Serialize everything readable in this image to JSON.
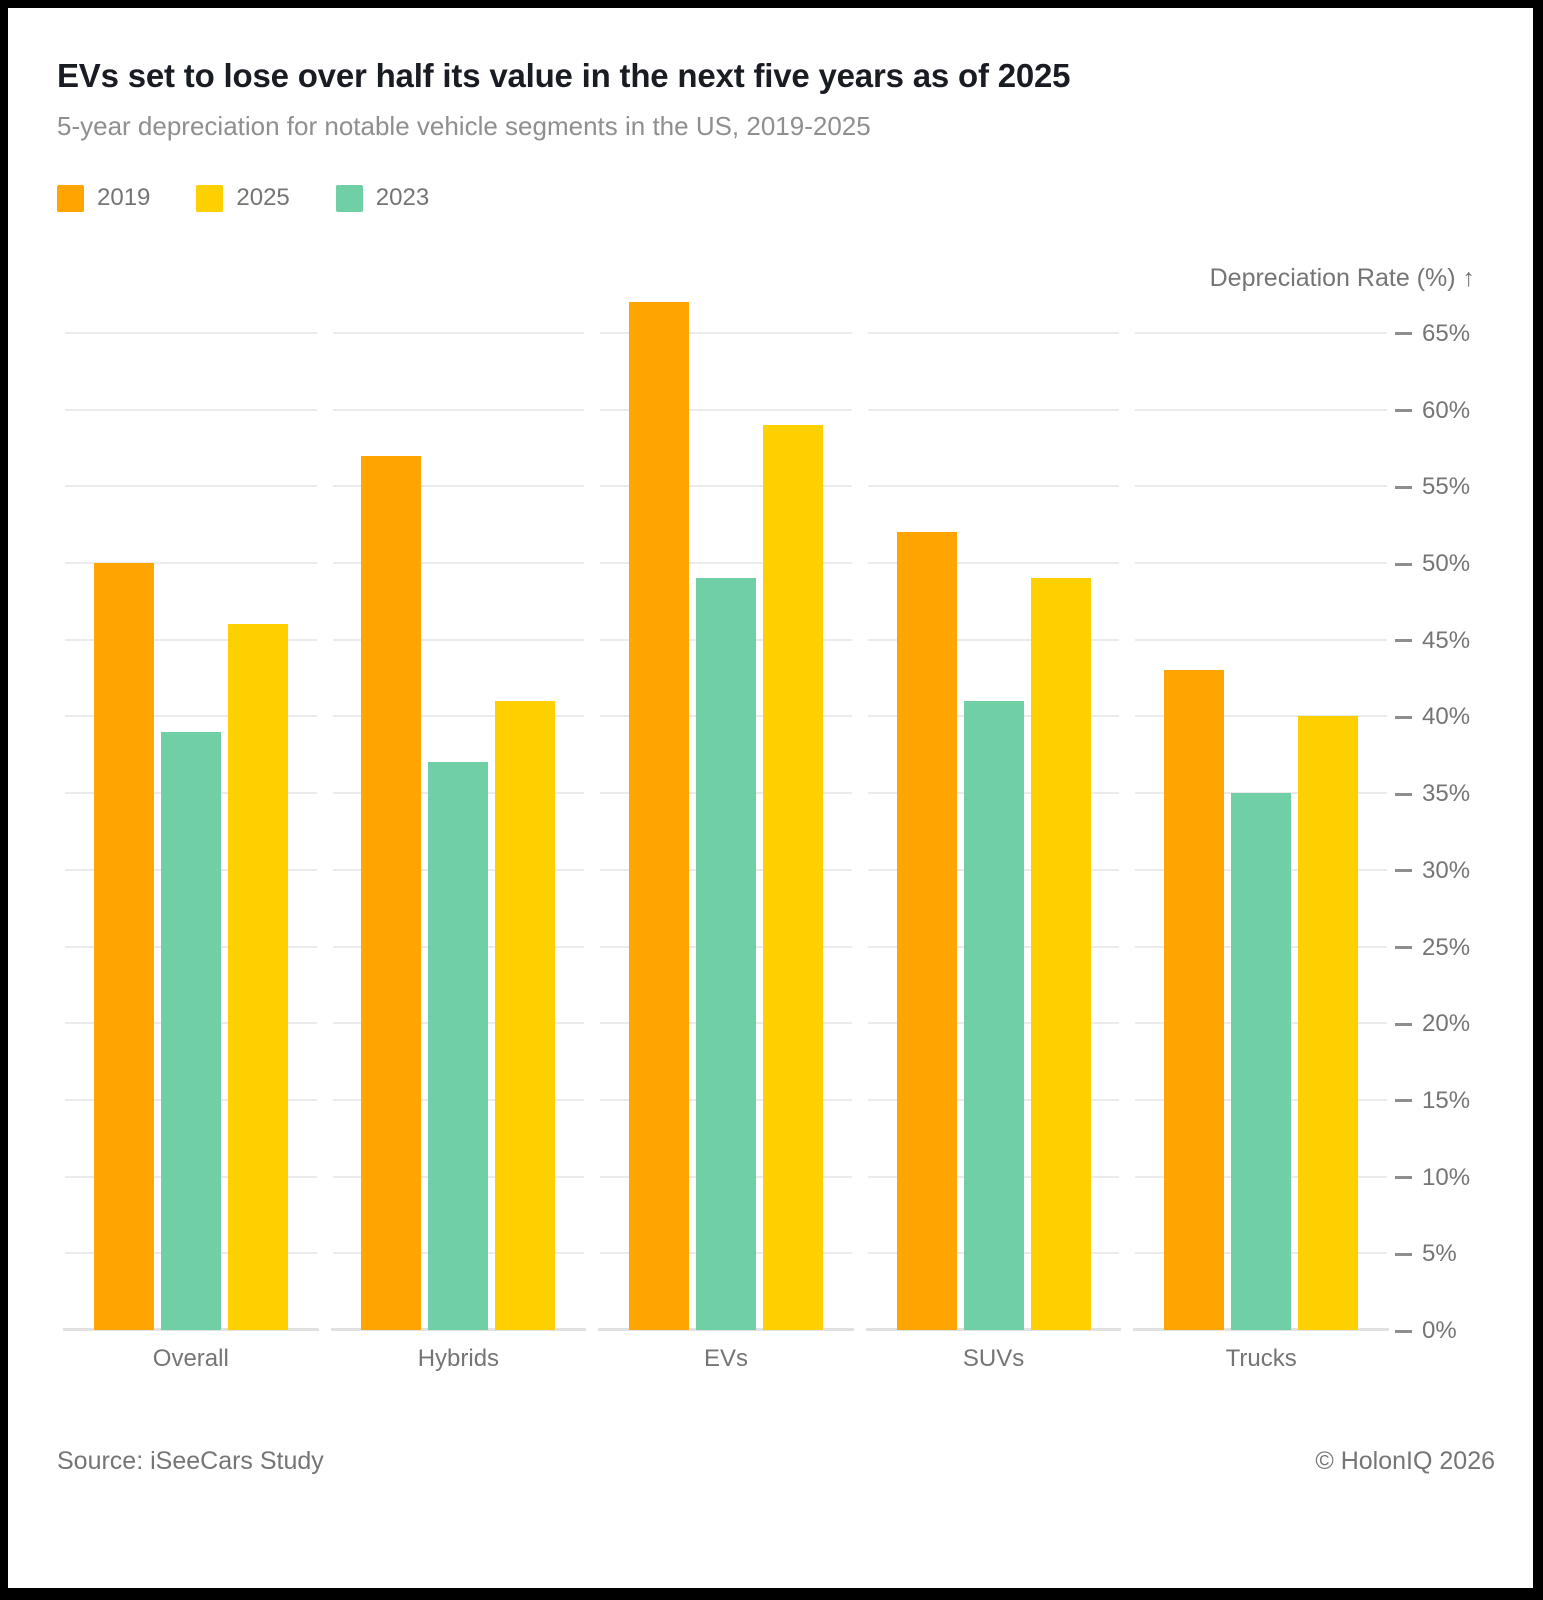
{
  "title": "EVs set to lose over half its value in the next five years as of 2025",
  "subtitle": "5-year depreciation for notable vehicle segments in the US, 2019-2025",
  "legend": [
    {
      "label": "2019",
      "color": "#ffa502"
    },
    {
      "label": "2025",
      "color": "#ffd000"
    },
    {
      "label": "2023",
      "color": "#70cfa5"
    }
  ],
  "axis": {
    "title": "Depreciation Rate (%) ↑",
    "ticks": [
      0,
      5,
      10,
      15,
      20,
      25,
      30,
      35,
      40,
      45,
      50,
      55,
      60,
      65
    ],
    "unit": "%"
  },
  "footer": {
    "source": "Source: iSeeCars Study",
    "copyright": "© HolonIQ 2026"
  },
  "chart_data": {
    "type": "bar",
    "categories": [
      "Overall",
      "Hybrids",
      "EVs",
      "SUVs",
      "Trucks"
    ],
    "series": [
      {
        "name": "2019",
        "color": "#ffa502",
        "values": [
          50,
          57,
          67,
          52,
          43
        ]
      },
      {
        "name": "2023",
        "color": "#70cfa5",
        "values": [
          39,
          37,
          49,
          41,
          35
        ]
      },
      {
        "name": "2025",
        "color": "#ffd000",
        "values": [
          46,
          41,
          59,
          49,
          40
        ]
      }
    ],
    "title": "EVs set to lose over half its value in the next five years as of 2025",
    "xlabel": "",
    "ylabel": "Depreciation Rate (%)",
    "ylim": [
      0,
      70
    ],
    "grid": true,
    "gridline_step": 5,
    "legend_position": "top-left"
  }
}
